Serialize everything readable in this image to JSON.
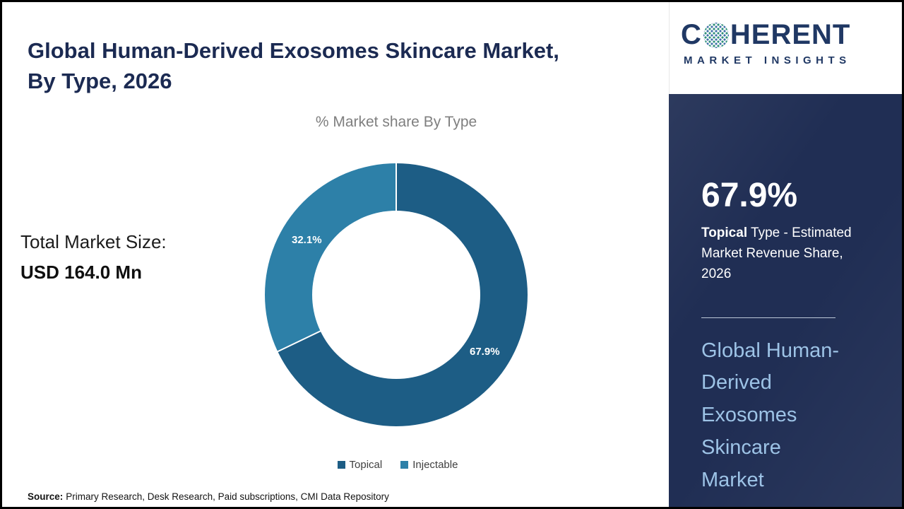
{
  "title": "Global Human-Derived Exosomes Skincare Market, By Type, 2026",
  "chart_data": {
    "type": "pie",
    "subtype": "donut",
    "title": "% Market share By Type",
    "categories": [
      "Topical",
      "Injectable"
    ],
    "values": [
      67.9,
      32.1
    ],
    "labels": [
      "67.9%",
      "32.1%"
    ],
    "colors": [
      "#1d5d85",
      "#2d80a8"
    ],
    "legend_position": "bottom",
    "start_angle_deg": 0,
    "direction": "clockwise"
  },
  "total_market": {
    "label": "Total Market Size:",
    "value": "USD 164.0 Mn"
  },
  "source": {
    "label": "Source:",
    "text": "Primary Research, Desk Research, Paid subscriptions, CMI Data Repository"
  },
  "logo": {
    "word_start": "C",
    "word_end": "HERENT",
    "tagline": "MARKET INSIGHTS"
  },
  "sidebar": {
    "stat_value": "67.9%",
    "stat_label_bold": "Topical",
    "stat_label_rest": " Type - Estimated Market Revenue Share, 2026",
    "market_name_lines": [
      "Global Human-",
      "Derived",
      "Exosomes",
      "Skincare",
      "Market"
    ]
  },
  "colors": {
    "brand_navy": "#203864",
    "panel_navy": "#202e54",
    "accent_light_blue": "#9dc3e6",
    "title_navy": "#1b2a52"
  }
}
